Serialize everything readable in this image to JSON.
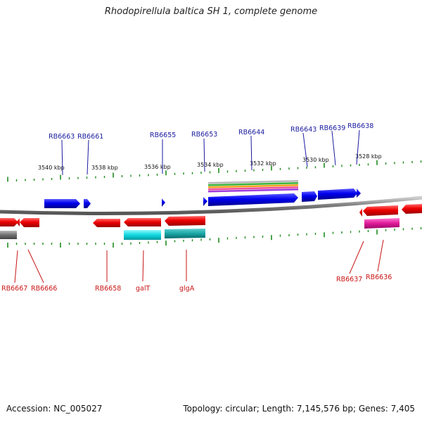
{
  "title": "Rhodopirellula baltica SH 1, complete genome",
  "footer": {
    "accession": "Accession: NC_005027",
    "stats": "Topology: circular; Length: 7,145,576 bp; Genes: 7,405"
  },
  "scale_labels": [
    "3540 kbp",
    "3538 kbp",
    "3536 kbp",
    "3534 kbp",
    "3532 kbp",
    "3530 kbp",
    "3528 kbp"
  ],
  "colors": {
    "forward_gene": "#0000ee",
    "reverse_gene": "#ee0000",
    "forward_label": "#1a1aa0",
    "reverse_label": "#c81414",
    "tick": "#1e8c1e",
    "backbone": "#888888",
    "cyan_feature": "#11d8e0",
    "teal_feature": "#1aa6a6",
    "magenta_feature": "#e0189a"
  },
  "top_labels": [
    "RB6663",
    "RB6661",
    "RB6655",
    "RB6653",
    "RB6644",
    "RB6643",
    "RB6639",
    "RB6638"
  ],
  "bottom_labels": [
    "RB6667",
    "RB6666",
    "RB6658",
    "galT",
    "glgA",
    "RB6637",
    "RB6636"
  ]
}
